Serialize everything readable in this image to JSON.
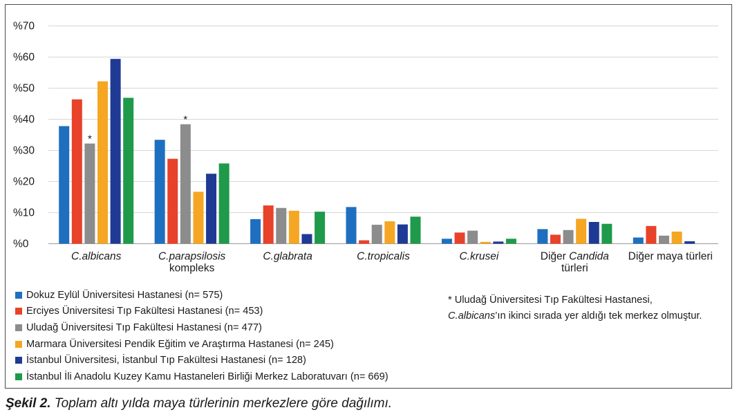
{
  "chart_data": {
    "type": "bar",
    "categories": [
      {
        "line1": "C.albicans",
        "line2": "",
        "italic": true
      },
      {
        "line1": "C.parapsilosis",
        "line2": "kompleks",
        "italic": true
      },
      {
        "line1": "C.glabrata",
        "line2": "",
        "italic": true
      },
      {
        "line1": "C.tropicalis",
        "line2": "",
        "italic": true
      },
      {
        "line1": "C.krusei",
        "line2": "",
        "italic": true
      },
      {
        "line1": "Diğer ",
        "line1_italic": "Candida",
        "line2": "türleri",
        "italic": false
      },
      {
        "line1": "Diğer maya türleri",
        "line2": "",
        "italic": false
      }
    ],
    "series": [
      {
        "name": "Dokuz Eylül Üniversitesi Hastanesi (n= 575)",
        "color": "#1f6fc0",
        "values": [
          37.8,
          33.4,
          7.9,
          11.8,
          1.6,
          4.7,
          2.0
        ]
      },
      {
        "name": "Erciyes Üniversitesi Tıp Fakültesi Hastanesi (n= 453)",
        "color": "#e8422a",
        "values": [
          46.4,
          27.3,
          12.3,
          1.1,
          3.6,
          2.9,
          5.7
        ]
      },
      {
        "name": "Uludağ Üniversitesi Tıp Fakültesi Hastanesi (n= 477)",
        "color": "#8c8c8c",
        "values": [
          32.2,
          38.4,
          11.5,
          6.1,
          4.2,
          4.4,
          2.6
        ]
      },
      {
        "name": "Marmara Üniversitesi Pendik Eğitim ve Araştırma Hastanesi (n= 245)",
        "color": "#f5a623",
        "values": [
          52.2,
          16.7,
          10.6,
          7.2,
          0.6,
          8.0,
          3.9
        ]
      },
      {
        "name": "İstanbul Üniversitesi, İstanbul Tıp Fakültesi Hastanesi (n= 128)",
        "color": "#1e3a94",
        "values": [
          59.4,
          22.5,
          3.1,
          6.2,
          0.7,
          7.0,
          0.8
        ]
      },
      {
        "name": "İstanbul İli Anadolu Kuzey Kamu Hastaneleri Birliği Merkez Laboratuvarı (n= 669)",
        "color": "#1e9a4a",
        "values": [
          46.9,
          25.8,
          10.3,
          8.7,
          1.6,
          6.4,
          0
        ]
      }
    ],
    "y_ticks": [
      "%0",
      "%10",
      "%20",
      "%30",
      "%40",
      "%50",
      "%60",
      "%70"
    ],
    "ylim": [
      0,
      70
    ],
    "grid": true,
    "legend_position": "bottom-left",
    "annotations": [
      {
        "text": "*",
        "category_index": 0,
        "series_index": 2
      },
      {
        "text": "*",
        "category_index": 1,
        "series_index": 2
      }
    ]
  },
  "note": {
    "line1": "* Uludağ Üniversitesi Tıp Fakültesi Hastanesi,",
    "line2_italic": "C.albicans",
    "line2_rest": "’ın ikinci sırada yer aldığı tek merkez olmuştur."
  },
  "caption": {
    "label": "Şekil 2.",
    "text": " Toplam altı yılda maya türlerinin merkezlere göre dağılımı."
  }
}
